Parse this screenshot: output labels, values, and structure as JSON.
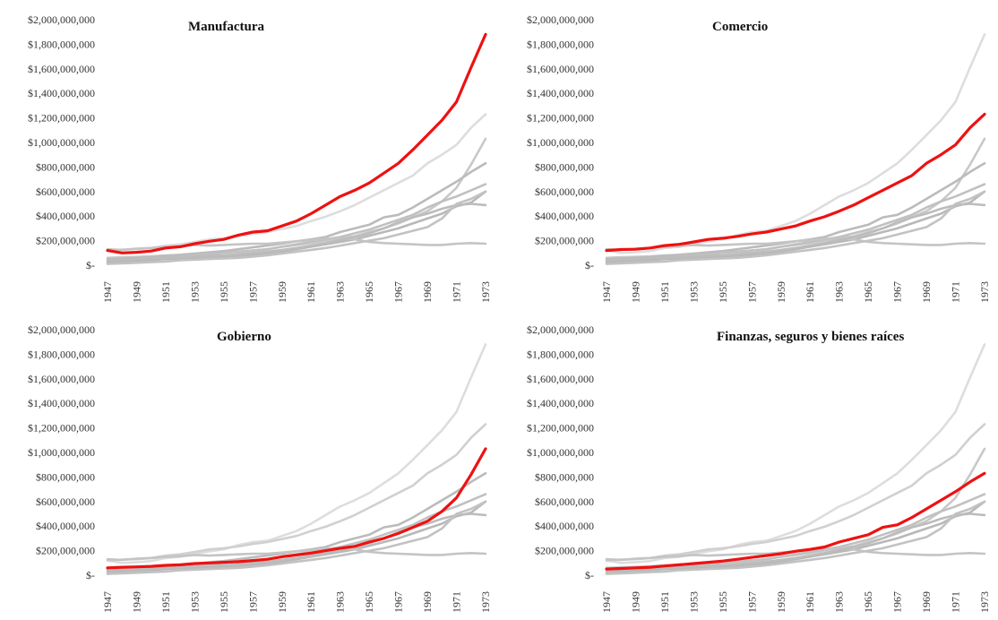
{
  "chart_data": [
    {
      "type": "line",
      "title": "Manufactura",
      "highlight_index": 0,
      "x": [
        "1947",
        "1948",
        "1949",
        "1950",
        "1951",
        "1952",
        "1953",
        "1954",
        "1955",
        "1956",
        "1957",
        "1958",
        "1959",
        "1960",
        "1961",
        "1962",
        "1963",
        "1964",
        "1965",
        "1966",
        "1967",
        "1968",
        "1969",
        "1970",
        "1971",
        "1972",
        "1973"
      ],
      "xticks": [
        "1947",
        "1949",
        "1951",
        "1953",
        "1955",
        "1957",
        "1959",
        "1961",
        "1963",
        "1965",
        "1967",
        "1969",
        "1971",
        "1973"
      ],
      "yticks": [
        "$2,000,000,000",
        "$1,800,000,000",
        "$1,600,000,000",
        "$1,400,000,000",
        "$1,200,000,000",
        "$1,000,000,000",
        "$800,000,000",
        "$600,000,000",
        "$400,000,000",
        "$200,000,000",
        "$-"
      ],
      "ylim": [
        0,
        2000000000
      ],
      "series_colors": [
        "#ee1111",
        "#dddddd",
        "#c8c8c8",
        "#bbbbbb",
        "#c0c0c0",
        "#b8b8b8",
        "#c4c4c4",
        "#bcbcbc",
        "#c2c2c2"
      ]
    },
    {
      "type": "line",
      "title": "Comercio",
      "highlight_index": 1,
      "x": [
        "1947",
        "1948",
        "1949",
        "1950",
        "1951",
        "1952",
        "1953",
        "1954",
        "1955",
        "1956",
        "1957",
        "1958",
        "1959",
        "1960",
        "1961",
        "1962",
        "1963",
        "1964",
        "1965",
        "1966",
        "1967",
        "1968",
        "1969",
        "1970",
        "1971",
        "1972",
        "1973"
      ],
      "xticks": [
        "1947",
        "1949",
        "1951",
        "1953",
        "1955",
        "1957",
        "1959",
        "1961",
        "1963",
        "1965",
        "1967",
        "1969",
        "1971",
        "1973"
      ],
      "yticks": [
        "$2,000,000,000",
        "$1,800,000,000",
        "$1,600,000,000",
        "$1,400,000,000",
        "$1,200,000,000",
        "$1,000,000,000",
        "$800,000,000",
        "$600,000,000",
        "$400,000,000",
        "$200,000,000",
        "$-"
      ],
      "ylim": [
        0,
        2000000000
      ],
      "series_colors": [
        "#dddddd",
        "#ee1111",
        "#c8c8c8",
        "#bbbbbb",
        "#c0c0c0",
        "#b8b8b8",
        "#c4c4c4",
        "#bcbcbc",
        "#c2c2c2"
      ]
    },
    {
      "type": "line",
      "title": "Gobierno",
      "highlight_index": 2,
      "x": [
        "1947",
        "1948",
        "1949",
        "1950",
        "1951",
        "1952",
        "1953",
        "1954",
        "1955",
        "1956",
        "1957",
        "1958",
        "1959",
        "1960",
        "1961",
        "1962",
        "1963",
        "1964",
        "1965",
        "1966",
        "1967",
        "1968",
        "1969",
        "1970",
        "1971",
        "1972",
        "1973"
      ],
      "xticks": [
        "1947",
        "1949",
        "1951",
        "1953",
        "1955",
        "1957",
        "1959",
        "1961",
        "1963",
        "1965",
        "1967",
        "1969",
        "1971",
        "1973"
      ],
      "yticks": [
        "$2,000,000,000",
        "$1,800,000,000",
        "$1,600,000,000",
        "$1,400,000,000",
        "$1,200,000,000",
        "$1,000,000,000",
        "$800,000,000",
        "$600,000,000",
        "$400,000,000",
        "$200,000,000",
        "$-"
      ],
      "ylim": [
        0,
        2000000000
      ],
      "series_colors": [
        "#dddddd",
        "#d0d0d0",
        "#ee1111",
        "#bbbbbb",
        "#c0c0c0",
        "#b8b8b8",
        "#c4c4c4",
        "#bcbcbc",
        "#c2c2c2"
      ]
    },
    {
      "type": "line",
      "title": "Finanzas, seguros y bienes raíces",
      "highlight_index": 3,
      "x": [
        "1947",
        "1948",
        "1949",
        "1950",
        "1951",
        "1952",
        "1953",
        "1954",
        "1955",
        "1956",
        "1957",
        "1958",
        "1959",
        "1960",
        "1961",
        "1962",
        "1963",
        "1964",
        "1965",
        "1966",
        "1967",
        "1968",
        "1969",
        "1970",
        "1971",
        "1972",
        "1973"
      ],
      "xticks": [
        "1947",
        "1949",
        "1951",
        "1953",
        "1955",
        "1957",
        "1959",
        "1961",
        "1963",
        "1965",
        "1967",
        "1969",
        "1971",
        "1973"
      ],
      "yticks": [
        "$2,000,000,000",
        "$1,800,000,000",
        "$1,600,000,000",
        "$1,400,000,000",
        "$1,200,000,000",
        "$1,000,000,000",
        "$800,000,000",
        "$600,000,000",
        "$400,000,000",
        "$200,000,000",
        "$-"
      ],
      "ylim": [
        0,
        2000000000
      ],
      "series_colors": [
        "#dddddd",
        "#d0d0d0",
        "#c8c8c8",
        "#ee1111",
        "#c0c0c0",
        "#b8b8b8",
        "#c4c4c4",
        "#bcbcbc",
        "#c2c2c2"
      ]
    }
  ],
  "series": [
    [
      120000000,
      100000000,
      105000000,
      115000000,
      140000000,
      150000000,
      175000000,
      195000000,
      210000000,
      245000000,
      270000000,
      280000000,
      320000000,
      360000000,
      420000000,
      490000000,
      560000000,
      610000000,
      670000000,
      750000000,
      830000000,
      940000000,
      1060000000,
      1180000000,
      1330000000,
      1610000000,
      1880000000
    ],
    [
      120000000,
      128000000,
      130000000,
      140000000,
      160000000,
      170000000,
      190000000,
      210000000,
      220000000,
      235000000,
      255000000,
      270000000,
      295000000,
      320000000,
      360000000,
      395000000,
      440000000,
      490000000,
      550000000,
      610000000,
      670000000,
      730000000,
      830000000,
      900000000,
      980000000,
      1120000000,
      1230000000
    ],
    [
      60000000,
      65000000,
      68000000,
      72000000,
      80000000,
      85000000,
      95000000,
      100000000,
      105000000,
      110000000,
      120000000,
      130000000,
      150000000,
      165000000,
      180000000,
      200000000,
      220000000,
      235000000,
      270000000,
      300000000,
      340000000,
      390000000,
      440000000,
      520000000,
      630000000,
      820000000,
      1030000000
    ],
    [
      50000000,
      55000000,
      60000000,
      65000000,
      75000000,
      85000000,
      95000000,
      105000000,
      115000000,
      130000000,
      145000000,
      160000000,
      175000000,
      195000000,
      210000000,
      230000000,
      270000000,
      300000000,
      330000000,
      390000000,
      410000000,
      470000000,
      540000000,
      610000000,
      680000000,
      760000000,
      830000000
    ],
    [
      30000000,
      40000000,
      45000000,
      50000000,
      60000000,
      70000000,
      80000000,
      90000000,
      100000000,
      110000000,
      120000000,
      130000000,
      150000000,
      170000000,
      190000000,
      210000000,
      230000000,
      260000000,
      290000000,
      330000000,
      370000000,
      410000000,
      470000000,
      520000000,
      560000000,
      610000000,
      660000000
    ],
    [
      20000000,
      28000000,
      35000000,
      40000000,
      50000000,
      55000000,
      60000000,
      65000000,
      70000000,
      75000000,
      85000000,
      95000000,
      110000000,
      130000000,
      150000000,
      170000000,
      190000000,
      210000000,
      240000000,
      270000000,
      300000000,
      340000000,
      380000000,
      420000000,
      480000000,
      510000000,
      600000000
    ],
    [
      130000000,
      125000000,
      135000000,
      140000000,
      150000000,
      155000000,
      165000000,
      160000000,
      165000000,
      170000000,
      175000000,
      175000000,
      185000000,
      195000000,
      205000000,
      215000000,
      220000000,
      210000000,
      190000000,
      180000000,
      175000000,
      170000000,
      165000000,
      165000000,
      175000000,
      180000000,
      175000000
    ],
    [
      40000000,
      45000000,
      50000000,
      55000000,
      60000000,
      65000000,
      70000000,
      75000000,
      80000000,
      90000000,
      100000000,
      110000000,
      125000000,
      140000000,
      160000000,
      180000000,
      205000000,
      230000000,
      260000000,
      300000000,
      350000000,
      390000000,
      420000000,
      460000000,
      490000000,
      500000000,
      490000000
    ],
    [
      10000000,
      15000000,
      20000000,
      25000000,
      30000000,
      40000000,
      45000000,
      50000000,
      55000000,
      60000000,
      70000000,
      80000000,
      95000000,
      110000000,
      125000000,
      140000000,
      160000000,
      180000000,
      200000000,
      220000000,
      250000000,
      280000000,
      310000000,
      380000000,
      500000000,
      540000000,
      600000000
    ]
  ]
}
